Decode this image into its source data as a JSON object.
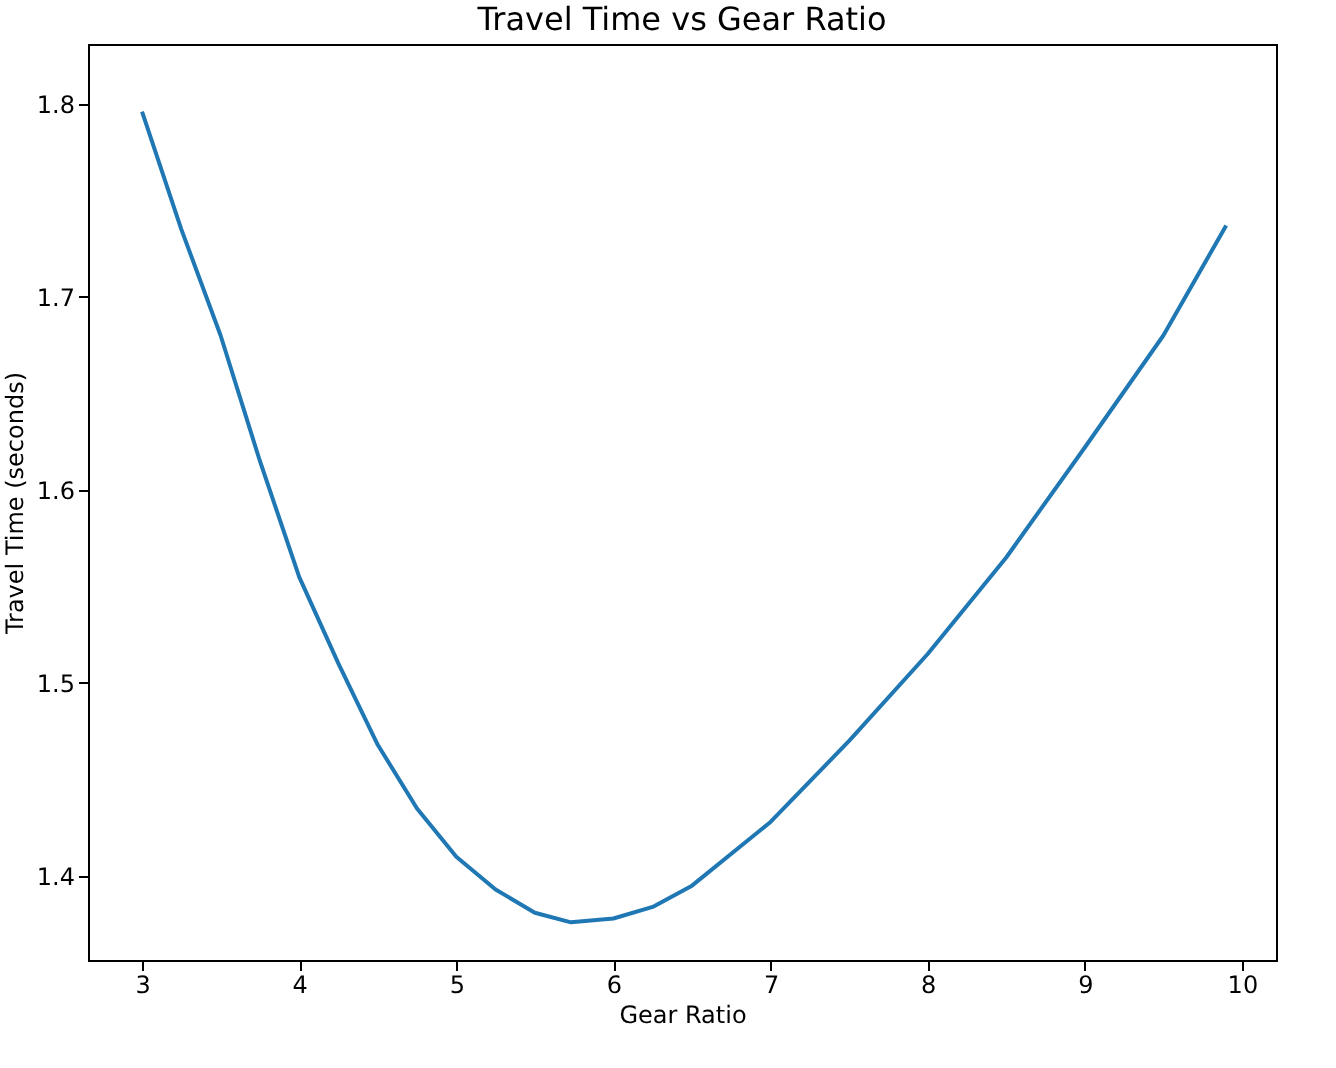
{
  "chart_data": {
    "type": "line",
    "title": "Travel Time vs Gear Ratio",
    "xlabel": "Gear Ratio",
    "ylabel": "Travel Time (seconds)",
    "x": [
      3,
      3.25,
      3.5,
      3.75,
      4,
      4.25,
      4.5,
      4.75,
      5,
      5.25,
      5.5,
      5.73,
      6,
      6.25,
      6.5,
      7,
      7.5,
      8,
      8.5,
      9,
      9.5,
      9.9
    ],
    "series": [
      {
        "color": "#1f77b4",
        "values": [
          1.796,
          1.735,
          1.68,
          1.615,
          1.555,
          1.51,
          1.468,
          1.435,
          1.41,
          1.393,
          1.381,
          1.376,
          1.378,
          1.384,
          1.395,
          1.428,
          1.47,
          1.515,
          1.565,
          1.622,
          1.68,
          1.737
        ]
      }
    ],
    "xlim": [
      2.656,
      10.217
    ],
    "ylim": [
      1.3565,
      1.831
    ],
    "xticks": [
      3,
      4,
      5,
      6,
      7,
      8,
      9,
      10
    ],
    "yticks": [
      1.4,
      1.5,
      1.6,
      1.7,
      1.8
    ],
    "grid": false,
    "legend": false,
    "marker": "none",
    "line_style": "solid"
  }
}
